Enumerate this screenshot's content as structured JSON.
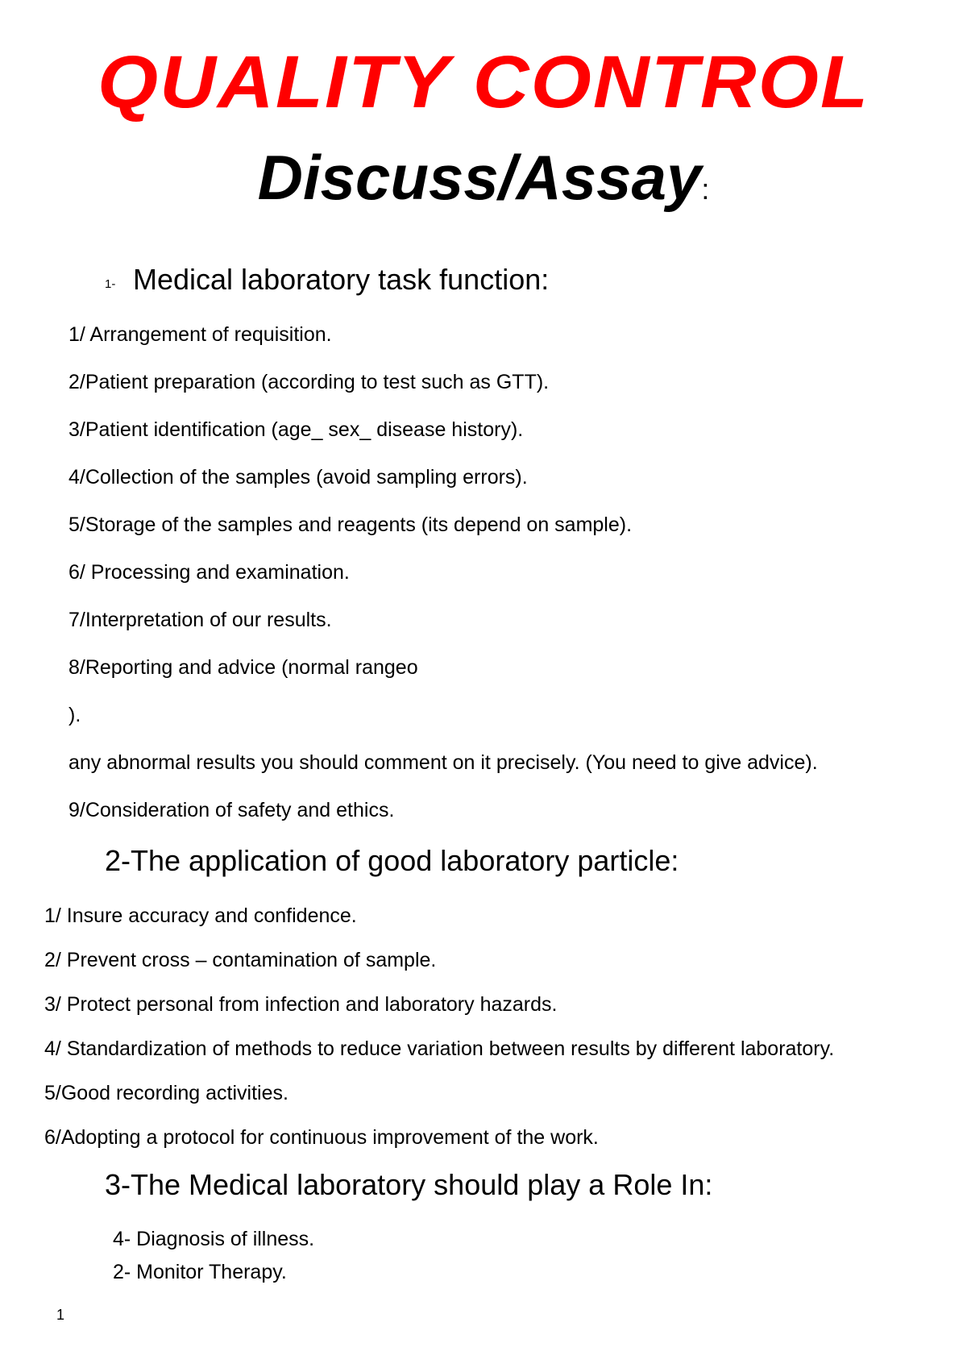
{
  "title": "QUALITY CONTROL",
  "subtitle": "Discuss/Assay",
  "subtitle_colon": ":",
  "colors": {
    "title_color": "#ff0000",
    "text_color": "#000000",
    "background": "#ffffff"
  },
  "typography": {
    "title_fontsize": 92,
    "subtitle_fontsize": 78,
    "heading_fontsize": 36,
    "body_fontsize": 25,
    "page_number_fontsize": 18
  },
  "section1": {
    "number": "1-",
    "heading": "Medical laboratory task function:",
    "items": [
      "1/ Arrangement of requisition.",
      "2/Patient preparation (according to test such as GTT).",
      "3/Patient identification (age_ sex_ disease history).",
      "4/Collection of the samples (avoid sampling errors).",
      "5/Storage of the samples and reagents (its depend on sample).",
      "6/ Processing and examination.",
      "7/Interpretation of our results.",
      "8/Reporting and advice (normal rangeo",
      ").",
      "any abnormal results you should comment on it precisely. (You need to give advice).",
      "9/Consideration of safety and ethics."
    ]
  },
  "section2": {
    "heading": "2-The application of good laboratory particle:",
    "items": [
      "1/ Insure accuracy and confidence.",
      "2/ Prevent cross – contamination of sample.",
      "3/ Protect personal from infection and laboratory hazards.",
      "4/ Standardization of methods to reduce variation between results by different laboratory.",
      "5/Good recording activities.",
      "6/Adopting a protocol for continuous improvement of the work."
    ]
  },
  "section3": {
    "heading": "3-The Medical laboratory should play a Role In:",
    "items": [
      "4-  Diagnosis of illness.",
      "2- Monitor Therapy."
    ]
  },
  "page_number": "1"
}
